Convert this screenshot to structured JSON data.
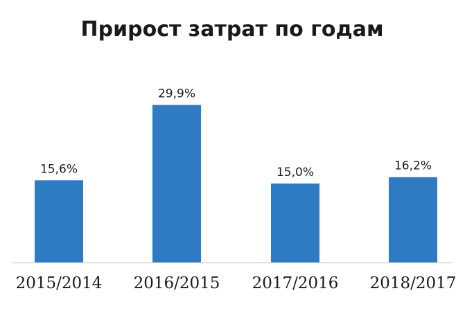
{
  "chart_data": {
    "type": "bar",
    "title": "Прирост затрат по годам",
    "categories": [
      "2015/2014",
      "2016/2015",
      "2017/2016",
      "2018/2017"
    ],
    "values": [
      15.6,
      29.9,
      15.0,
      16.2
    ],
    "value_labels": [
      "15,6%",
      "29,9%",
      "15,0%",
      "16,2%"
    ],
    "unit": "%",
    "ylim": [
      0,
      38.5
    ],
    "grid": false,
    "legend": "none",
    "bar_color": "#2e7bc4",
    "axis_color": "#bfbfbf",
    "text_color": "#1a1a1a"
  }
}
